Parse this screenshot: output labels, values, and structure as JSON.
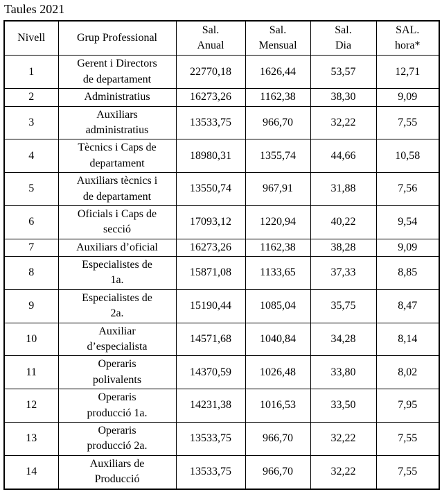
{
  "title": "Taules 2021",
  "table": {
    "headers": {
      "nivell": "Nivell",
      "grup": "Grup Professional",
      "anual": "Sal.\nAnual",
      "mensual": "Sal.\nMensual",
      "dia": "Sal.\nDia",
      "hora": "SAL.\nhora*"
    },
    "rows": [
      {
        "nivell": "1",
        "grup": "Gerent i Directors\nde departament",
        "anual": "22770,18",
        "mensual": "1626,44",
        "dia": "53,57",
        "hora": "12,71"
      },
      {
        "nivell": "2",
        "grup": "Administratius",
        "anual": "16273,26",
        "mensual": "1162,38",
        "dia": "38,30",
        "hora": "9,09"
      },
      {
        "nivell": "3",
        "grup": "Auxiliars\nadministratius",
        "anual": "13533,75",
        "mensual": "966,70",
        "dia": "32,22",
        "hora": "7,55"
      },
      {
        "nivell": "4",
        "grup": "Tècnics i Caps de\ndepartament",
        "anual": "18980,31",
        "mensual": "1355,74",
        "dia": "44,66",
        "hora": "10,58"
      },
      {
        "nivell": "5",
        "grup": "Auxiliars tècnics i\nde departament",
        "anual": "13550,74",
        "mensual": "967,91",
        "dia": "31,88",
        "hora": "7,56"
      },
      {
        "nivell": "6",
        "grup": "Oficials i Caps de\nsecció",
        "anual": "17093,12",
        "mensual": "1220,94",
        "dia": "40,22",
        "hora": "9,54"
      },
      {
        "nivell": "7",
        "grup": "Auxiliars d’oficial",
        "anual": "16273,26",
        "mensual": "1162,38",
        "dia": "38,28",
        "hora": "9,09"
      },
      {
        "nivell": "8",
        "grup": "Especialistes de\n1a.",
        "anual": "15871,08",
        "mensual": "1133,65",
        "dia": "37,33",
        "hora": "8,85"
      },
      {
        "nivell": "9",
        "grup": "Especialistes de\n2a.",
        "anual": "15190,44",
        "mensual": "1085,04",
        "dia": "35,75",
        "hora": "8,47"
      },
      {
        "nivell": "10",
        "grup": "Auxiliar\nd’especialista",
        "anual": "14571,68",
        "mensual": "1040,84",
        "dia": "34,28",
        "hora": "8,14"
      },
      {
        "nivell": "11",
        "grup": "Operaris\npolivalents",
        "anual": "14370,59",
        "mensual": "1026,48",
        "dia": "33,80",
        "hora": "8,02"
      },
      {
        "nivell": "12",
        "grup": "Operaris\nproducció 1a.",
        "anual": "14231,38",
        "mensual": "1016,53",
        "dia": "33,50",
        "hora": "7,95"
      },
      {
        "nivell": "13",
        "grup": "Operaris\nproducció 2a.",
        "anual": "13533,75",
        "mensual": "966,70",
        "dia": "32,22",
        "hora": "7,55"
      },
      {
        "nivell": "14",
        "grup": "Auxiliars de\nProducció",
        "anual": "13533,75",
        "mensual": "966,70",
        "dia": "32,22",
        "hora": "7,55"
      }
    ]
  }
}
